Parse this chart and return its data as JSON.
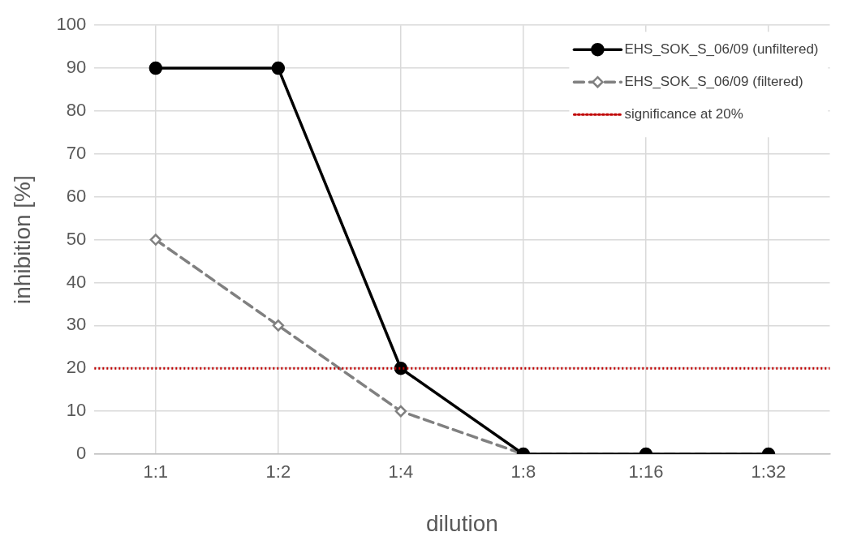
{
  "chart_data": {
    "type": "line",
    "xlabel": "dilution",
    "ylabel": "inhibition [%]",
    "categories": [
      "1:1",
      "1:2",
      "1:4",
      "1:8",
      "1:16",
      "1:32"
    ],
    "series": [
      {
        "name": "EHS_SOK_S_06/09 (unfiltered)",
        "color": "#000000",
        "values": [
          90,
          90,
          20,
          0,
          0,
          0
        ],
        "marker": "circle",
        "line_style": "solid"
      },
      {
        "name": "EHS_SOK_S_06/09 (filtered)",
        "color": "#808080",
        "values": [
          50,
          30,
          10,
          0,
          0,
          0
        ],
        "marker": "diamond",
        "line_style": "dashed"
      }
    ],
    "ref_lines": [
      {
        "axis": "y",
        "value": 20,
        "label": "significance at 20%",
        "color": "#c00000",
        "line_style": "dotted"
      }
    ],
    "ylim": [
      0,
      100
    ],
    "yticks": [
      0,
      10,
      20,
      30,
      40,
      50,
      60,
      70,
      80,
      90,
      100
    ],
    "grid": true,
    "legend": "top right"
  }
}
